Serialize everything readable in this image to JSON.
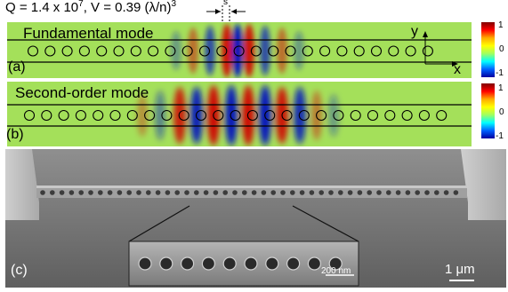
{
  "header": {
    "q_label": "Q = 1.4 x 10",
    "q_exponent": "7",
    "v_label": ", V = 0.39 (λ/n)",
    "v_exponent": "3",
    "s_label": "s"
  },
  "panel_a": {
    "title": "Fundamental mode",
    "tag": "(a)",
    "axis_y": "y",
    "axis_x": "x",
    "colorbar_ticks": [
      "1",
      "0",
      "-1"
    ]
  },
  "panel_b": {
    "title": "Second-order mode",
    "tag": "(b)",
    "colorbar_ticks": [
      "1",
      "0",
      "-1"
    ]
  },
  "panel_c": {
    "tag": "(c)",
    "inset_scale": "200 nm",
    "main_scale": "1 μm"
  },
  "colors": {
    "field_background": "#a4e05a",
    "positive": "#d00000",
    "negative": "#0010c0"
  }
}
